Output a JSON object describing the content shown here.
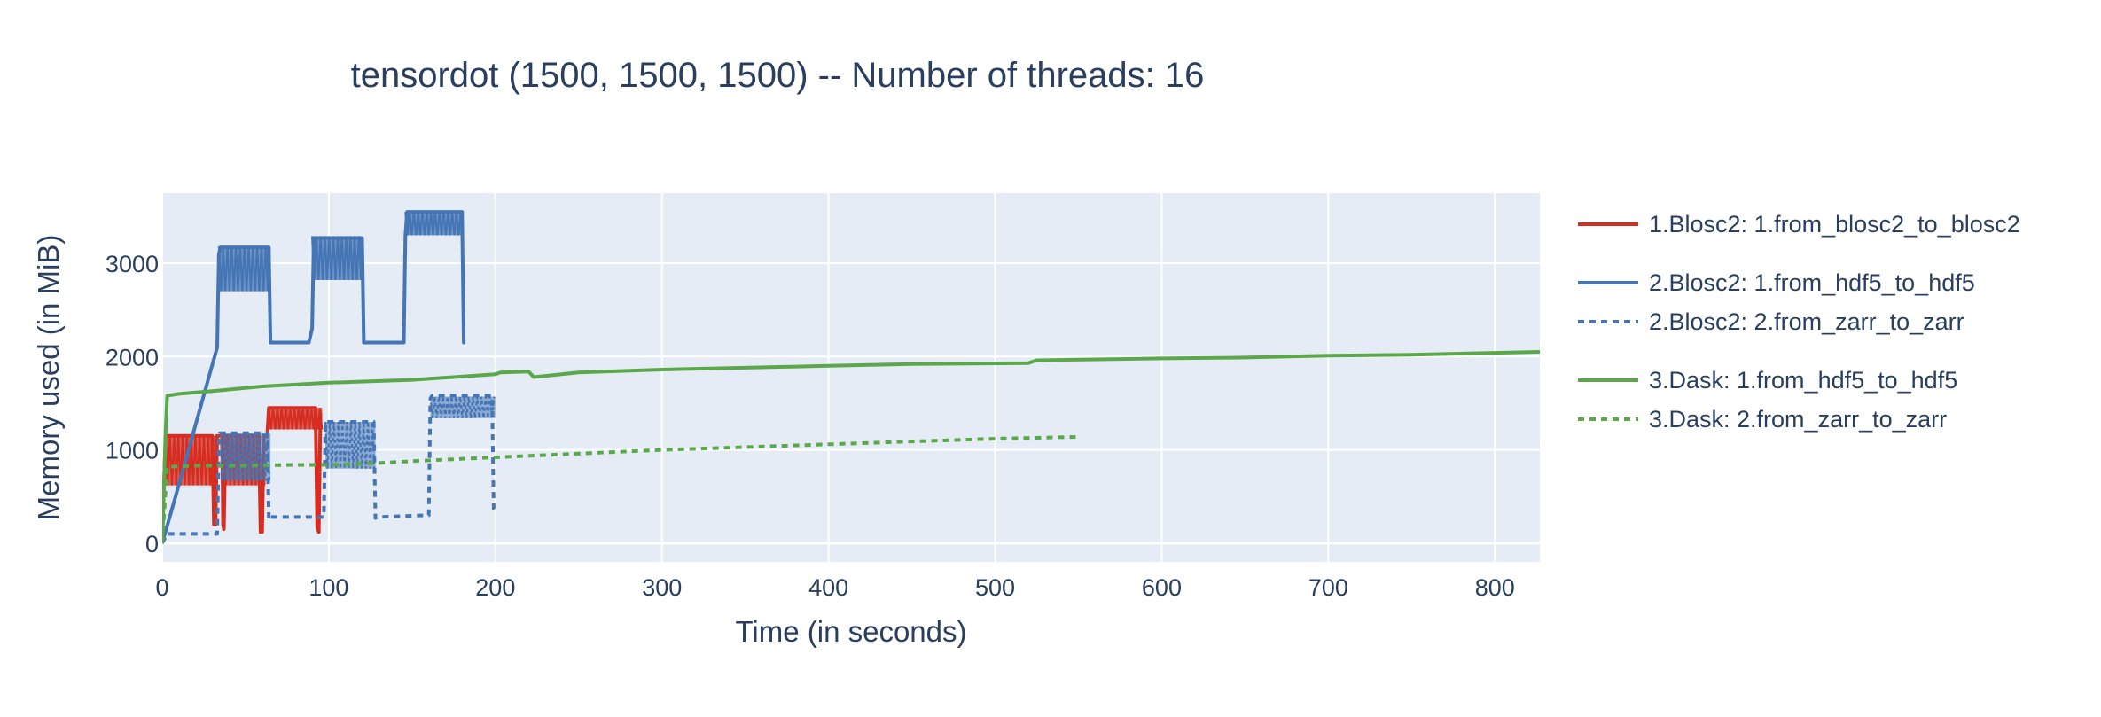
{
  "title": "tensordot (1500, 1500, 1500) -- Number of threads: 16",
  "chart_data": {
    "type": "line",
    "title": "tensordot (1500, 1500, 1500) -- Number of threads: 16",
    "xlabel": "Time (in seconds)",
    "ylabel": "Memory used (in MiB)",
    "xlim": [
      0,
      827
    ],
    "ylim": [
      -200,
      3750
    ],
    "xticks": [
      0,
      100,
      200,
      300,
      400,
      500,
      600,
      700,
      800
    ],
    "yticks": [
      0,
      1000,
      2000,
      3000
    ],
    "grid": true,
    "plot_bg": "#e5ecf6",
    "legend_position": "right",
    "series": [
      {
        "name": "1.Blosc2: 1.from_blosc2_to_blosc2",
        "group": "1",
        "color": "#d62d20",
        "dash": "solid",
        "x": [
          0,
          1,
          2,
          3,
          30,
          31,
          32,
          33,
          36,
          36.5,
          37,
          38,
          58,
          59,
          60,
          61,
          63,
          64,
          65,
          92,
          93,
          94,
          95
        ],
        "y": [
          0,
          620,
          1150,
          1150,
          1150,
          200,
          200,
          1150,
          1150,
          200,
          150,
          1150,
          1150,
          120,
          120,
          1150,
          1150,
          1450,
          1450,
          1450,
          180,
          120,
          1400
        ],
        "bands": [
          {
            "x0": 2,
            "x1": 33,
            "y0": 620,
            "y1": 1150
          },
          {
            "x0": 37,
            "x1": 58,
            "y0": 620,
            "y1": 1150
          },
          {
            "x0": 60,
            "x1": 62,
            "y0": 620,
            "y1": 1150
          },
          {
            "x0": 64,
            "x1": 96,
            "y0": 1220,
            "y1": 1450
          }
        ]
      },
      {
        "name": "2.Blosc2: 1.from_hdf5_to_hdf5",
        "group": "2",
        "color": "#4575b4",
        "dash": "solid",
        "x": [
          0,
          8,
          33,
          34,
          35,
          64,
          65,
          66,
          88,
          90,
          91,
          120,
          121,
          122,
          145,
          146,
          147,
          180,
          181,
          182
        ],
        "y": [
          0,
          500,
          2100,
          3100,
          3170,
          3170,
          2150,
          2150,
          2150,
          2300,
          3270,
          3270,
          2150,
          2150,
          2150,
          3300,
          3550,
          3550,
          2150,
          2150
        ],
        "bands": [
          {
            "x0": 34,
            "x1": 64,
            "y0": 2700,
            "y1": 3180
          },
          {
            "x0": 90,
            "x1": 120,
            "y0": 2820,
            "y1": 3290
          },
          {
            "x0": 146,
            "x1": 181,
            "y0": 3300,
            "y1": 3550
          }
        ]
      },
      {
        "name": "2.Blosc2: 2.from_zarr_to_zarr",
        "group": "2",
        "color": "#4575b4",
        "dash": "dot",
        "x": [
          0,
          3,
          30,
          33,
          34,
          34.5,
          35,
          63,
          64,
          65,
          66,
          97,
          98,
          99,
          127,
          128,
          129,
          160,
          161,
          162,
          198,
          199,
          200
        ],
        "y": [
          0,
          100,
          100,
          100,
          1100,
          1180,
          1180,
          1180,
          250,
          280,
          280,
          280,
          1300,
          1300,
          1300,
          270,
          280,
          300,
          1550,
          1580,
          1580,
          370,
          350
        ],
        "bands": [
          {
            "x0": 35,
            "x1": 65,
            "y0": 670,
            "y1": 1180
          },
          {
            "x0": 98,
            "x1": 128,
            "y0": 800,
            "y1": 1300
          },
          {
            "x0": 161,
            "x1": 200,
            "y0": 1340,
            "y1": 1570
          }
        ]
      },
      {
        "name": "3.Dask: 1.from_hdf5_to_hdf5",
        "group": "3",
        "color": "#5ba84a",
        "dash": "solid",
        "x": [
          0,
          2,
          3,
          10,
          30,
          60,
          100,
          150,
          200,
          203,
          220,
          223,
          250,
          300,
          350,
          400,
          450,
          520,
          525,
          600,
          650,
          700,
          750,
          800,
          827
        ],
        "y": [
          0,
          1200,
          1580,
          1600,
          1630,
          1680,
          1720,
          1750,
          1810,
          1830,
          1840,
          1780,
          1830,
          1860,
          1880,
          1900,
          1920,
          1930,
          1960,
          1980,
          1990,
          2010,
          2020,
          2040,
          2050
        ]
      },
      {
        "name": "3.Dask: 2.from_zarr_to_zarr",
        "group": "3",
        "color": "#5ba84a",
        "dash": "dot",
        "x": [
          0,
          3,
          20,
          50,
          80,
          100,
          130,
          150,
          200,
          250,
          300,
          350,
          400,
          450,
          500,
          550
        ],
        "y": [
          0,
          820,
          830,
          830,
          840,
          840,
          860,
          880,
          920,
          960,
          1000,
          1030,
          1060,
          1090,
          1120,
          1140
        ]
      }
    ]
  }
}
